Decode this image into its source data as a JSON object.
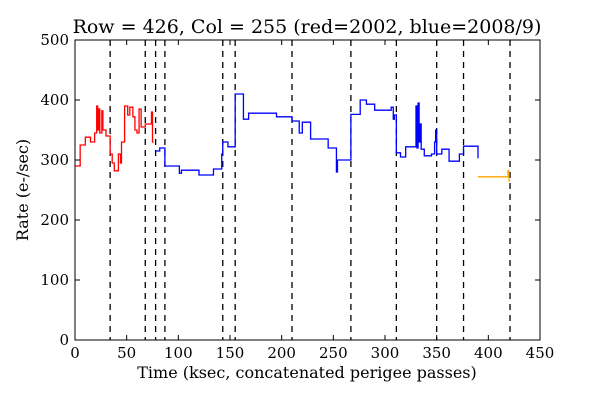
{
  "chart_data": {
    "type": "line",
    "title": "Row = 426, Col = 255 (red=2002, blue=2008/9)",
    "xlabel": "Time (ksec, concatenated perigee passes)",
    "ylabel": "Rate (e-/sec)",
    "xlim": [
      0,
      450
    ],
    "ylim": [
      0,
      500
    ],
    "x_ticks": [
      0,
      50,
      100,
      150,
      200,
      250,
      300,
      350,
      400,
      450
    ],
    "y_ticks": [
      0,
      100,
      200,
      300,
      400,
      500
    ],
    "grid": false,
    "legend": "none",
    "series_colors": {
      "red": "#ff0000",
      "blue": "#0000ff",
      "orange": "#ffa500",
      "boundaries": "#000000"
    },
    "boundaries": [
      34,
      68,
      78,
      87,
      143,
      155,
      210,
      267,
      311,
      350,
      376,
      421
    ],
    "series": [
      {
        "color": "red",
        "points": [
          [
            0,
            290
          ],
          [
            5,
            290
          ],
          [
            5,
            325
          ],
          [
            10,
            325
          ],
          [
            10,
            338
          ],
          [
            15,
            338
          ],
          [
            15,
            330
          ],
          [
            19,
            330
          ],
          [
            19,
            345
          ],
          [
            21,
            345
          ],
          [
            21,
            390
          ],
          [
            22,
            390
          ],
          [
            22,
            350
          ],
          [
            23,
            350
          ],
          [
            23,
            385
          ],
          [
            24,
            385
          ],
          [
            24,
            345
          ],
          [
            26,
            345
          ],
          [
            26,
            382
          ],
          [
            27,
            382
          ],
          [
            27,
            350
          ],
          [
            30,
            350
          ],
          [
            30,
            340
          ],
          [
            34,
            340
          ],
          [
            34,
            310
          ],
          [
            36,
            310
          ],
          [
            36,
            295
          ],
          [
            38,
            295
          ],
          [
            38,
            282
          ],
          [
            42,
            282
          ],
          [
            42,
            310
          ],
          [
            44,
            310
          ],
          [
            44,
            295
          ],
          [
            45,
            295
          ],
          [
            45,
            330
          ],
          [
            48,
            330
          ],
          [
            48,
            390
          ],
          [
            51,
            390
          ],
          [
            51,
            375
          ],
          [
            53,
            375
          ],
          [
            53,
            388
          ],
          [
            56,
            388
          ],
          [
            56,
            372
          ],
          [
            58,
            372
          ],
          [
            58,
            350
          ],
          [
            60,
            350
          ],
          [
            60,
            345
          ],
          [
            62,
            345
          ],
          [
            62,
            385
          ],
          [
            64,
            385
          ],
          [
            64,
            355
          ],
          [
            68,
            355
          ],
          [
            68,
            360
          ],
          [
            74,
            360
          ],
          [
            74,
            380
          ],
          [
            75,
            380
          ],
          [
            75,
            330
          ],
          [
            76,
            330
          ]
        ]
      },
      {
        "color": "blue",
        "points": [
          [
            78,
            315
          ],
          [
            82,
            315
          ],
          [
            82,
            320
          ],
          [
            87,
            320
          ],
          [
            87,
            290
          ],
          [
            95,
            290
          ],
          [
            95,
            290
          ],
          [
            101,
            290
          ],
          [
            101,
            278
          ],
          [
            103,
            278
          ],
          [
            103,
            283
          ],
          [
            120,
            283
          ],
          [
            120,
            275
          ],
          [
            134,
            275
          ],
          [
            134,
            285
          ],
          [
            142,
            285
          ],
          [
            142,
            310
          ],
          [
            143,
            310
          ],
          [
            143,
            330
          ],
          [
            148,
            330
          ],
          [
            148,
            322
          ],
          [
            155,
            322
          ],
          [
            155,
            410
          ],
          [
            163,
            410
          ],
          [
            163,
            368
          ],
          [
            168,
            368
          ],
          [
            168,
            378
          ],
          [
            195,
            378
          ],
          [
            195,
            372
          ],
          [
            210,
            372
          ],
          [
            210,
            365
          ],
          [
            217,
            365
          ],
          [
            217,
            345
          ],
          [
            220,
            345
          ],
          [
            220,
            363
          ],
          [
            228,
            363
          ],
          [
            228,
            335
          ],
          [
            245,
            335
          ],
          [
            245,
            320
          ],
          [
            253,
            320
          ],
          [
            253,
            280
          ],
          [
            254,
            280
          ],
          [
            254,
            300
          ],
          [
            260,
            300
          ],
          [
            260,
            300
          ],
          [
            267,
            300
          ],
          [
            267,
            376
          ],
          [
            276,
            376
          ],
          [
            276,
            400
          ],
          [
            282,
            400
          ],
          [
            282,
            393
          ],
          [
            290,
            393
          ],
          [
            290,
            383
          ],
          [
            306,
            383
          ],
          [
            306,
            388
          ],
          [
            308,
            388
          ],
          [
            308,
            368
          ],
          [
            309,
            368
          ],
          [
            309,
            375
          ],
          [
            311,
            375
          ],
          [
            311,
            312
          ],
          [
            315,
            312
          ],
          [
            315,
            305
          ],
          [
            320,
            305
          ],
          [
            320,
            322
          ],
          [
            330,
            322
          ],
          [
            330,
            390
          ],
          [
            331,
            390
          ],
          [
            331,
            320
          ],
          [
            332,
            320
          ],
          [
            332,
            395
          ],
          [
            333,
            395
          ],
          [
            333,
            330
          ],
          [
            334,
            330
          ],
          [
            334,
            360
          ],
          [
            335,
            360
          ],
          [
            335,
            318
          ],
          [
            338,
            318
          ],
          [
            338,
            307
          ],
          [
            345,
            307
          ],
          [
            345,
            310
          ],
          [
            348,
            310
          ],
          [
            348,
            330
          ],
          [
            349,
            330
          ],
          [
            349,
            350
          ],
          [
            350,
            350
          ],
          [
            350,
            310
          ],
          [
            355,
            310
          ],
          [
            355,
            318
          ],
          [
            362,
            318
          ],
          [
            362,
            298
          ],
          [
            372,
            298
          ],
          [
            372,
            310
          ],
          [
            376,
            310
          ],
          [
            376,
            323
          ],
          [
            390,
            323
          ],
          [
            390,
            303
          ]
        ]
      },
      {
        "color": "orange",
        "points": [
          [
            390,
            272
          ],
          [
            419,
            272
          ],
          [
            419,
            282
          ],
          [
            420,
            282
          ],
          [
            420,
            265
          ],
          [
            421,
            265
          ]
        ]
      }
    ]
  }
}
